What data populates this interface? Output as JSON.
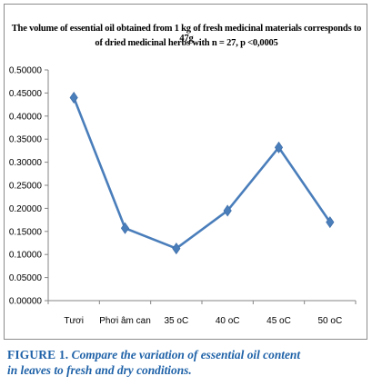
{
  "chart_data": {
    "type": "line",
    "title_lines": [
      "The volume of essential oil obtained from 1 kg of fresh medicinal materials corresponds to 47g",
      "of dried medicinal herbs with n = 27, p <0,0005"
    ],
    "categories": [
      "Tươi",
      "Phơi âm can",
      "35 oC",
      "40 oC",
      "45 oC",
      "50 oC"
    ],
    "values": [
      0.44,
      0.157,
      0.113,
      0.195,
      0.332,
      0.17
    ],
    "ylim": [
      0,
      0.5
    ],
    "yticks": [
      "0.00000",
      "0.05000",
      "0.10000",
      "0.15000",
      "0.20000",
      "0.25000",
      "0.30000",
      "0.35000",
      "0.40000",
      "0.45000",
      "0.50000"
    ],
    "color": "#4a7ebb",
    "grid": false,
    "legend": "none"
  },
  "caption": {
    "label": "FIGURE 1.",
    "text_line1": "Compare the variation of essential oil content",
    "text_line2": "in leaves to fresh and dry conditions."
  }
}
